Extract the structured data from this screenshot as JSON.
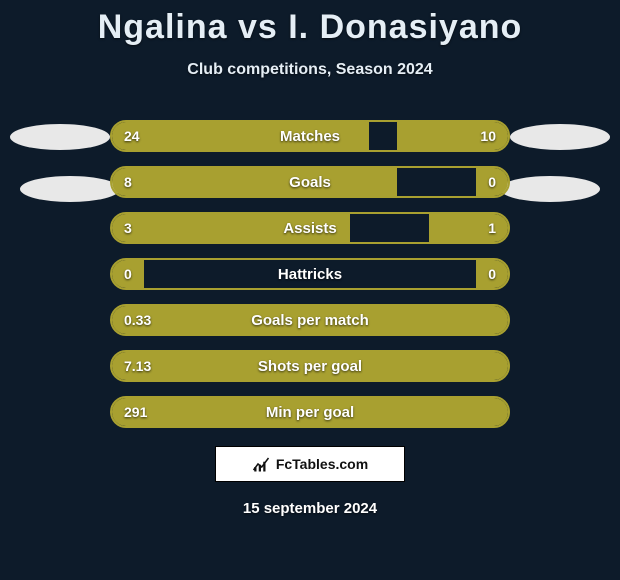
{
  "background_color": "#0d1b2a",
  "bar_color": "#a8a030",
  "border_color": "#a8a030",
  "text_color": "#ffffff",
  "oval_color": "#e8e8e8",
  "title": "Ngalina vs I. Donasiyano",
  "subtitle": "Club competitions, Season 2024",
  "date": "15 september 2024",
  "brand": "FcTables.com",
  "rows": [
    {
      "label": "Matches",
      "left_val": "24",
      "right_val": "10",
      "left_pct": 65,
      "right_pct": 28
    },
    {
      "label": "Goals",
      "left_val": "8",
      "right_val": "0",
      "left_pct": 72,
      "right_pct": 8
    },
    {
      "label": "Assists",
      "left_val": "3",
      "right_val": "1",
      "left_pct": 60,
      "right_pct": 20
    },
    {
      "label": "Hattricks",
      "left_val": "0",
      "right_val": "0",
      "left_pct": 8,
      "right_pct": 8
    },
    {
      "label": "Goals per match",
      "left_val": "0.33",
      "right_val": "",
      "left_pct": 100,
      "right_pct": 0
    },
    {
      "label": "Shots per goal",
      "left_val": "7.13",
      "right_val": "",
      "left_pct": 100,
      "right_pct": 0
    },
    {
      "label": "Min per goal",
      "left_val": "291",
      "right_val": "",
      "left_pct": 100,
      "right_pct": 0
    }
  ]
}
